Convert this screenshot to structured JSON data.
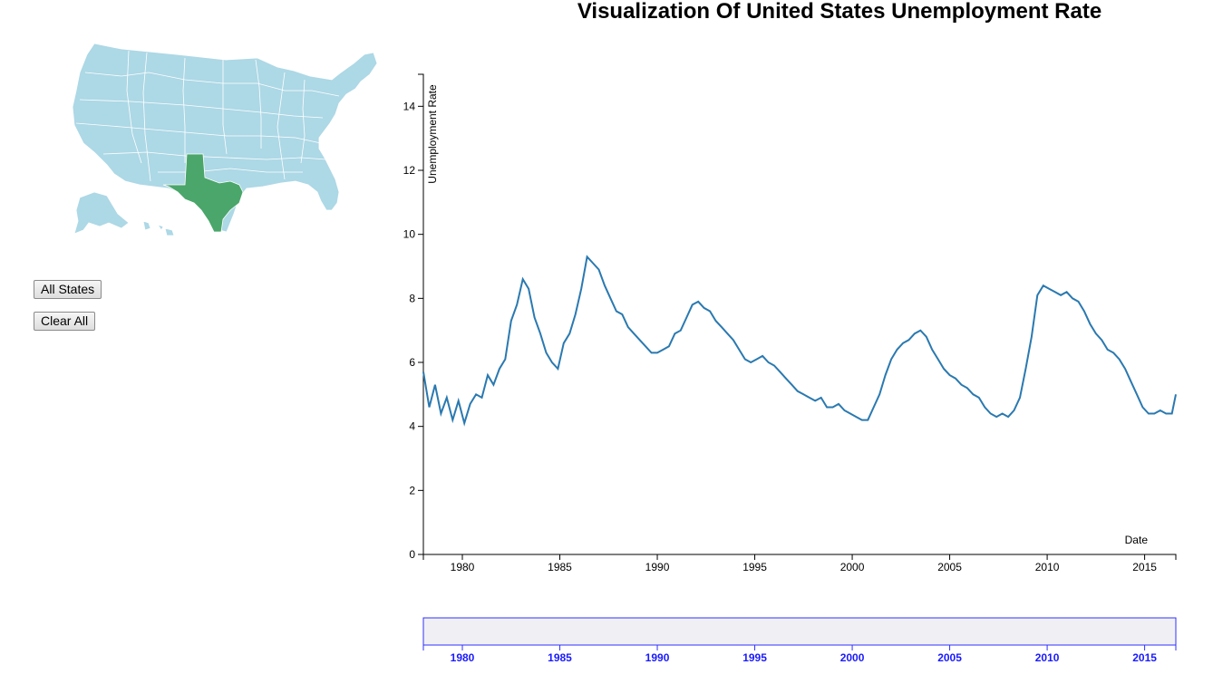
{
  "title": "Visualization Of United States Unemployment Rate",
  "buttons": {
    "all_states": "All States",
    "clear_all": "Clear All"
  },
  "map": {
    "selected_state": "Texas",
    "base_color": "#add8e6",
    "selected_color": "#4aa66a",
    "border_color": "#ffffff"
  },
  "colors": {
    "line": "#2a79b0",
    "brush_fill": "#f0f0f4",
    "brush_stroke": "#3030ff"
  },
  "chart_data": {
    "type": "line",
    "xlabel": "Date",
    "ylabel": "Unemployment Rate",
    "xlim": [
      1978,
      2016.6
    ],
    "ylim": [
      0,
      15
    ],
    "x_ticks": [
      "1980",
      "1985",
      "1990",
      "1995",
      "2000",
      "2005",
      "2010",
      "2015"
    ],
    "y_ticks": [
      "0",
      "2",
      "4",
      "6",
      "8",
      "10",
      "12",
      "14"
    ],
    "series": [
      {
        "x": [
          1978.0,
          1978.3,
          1978.6,
          1978.9,
          1979.2,
          1979.5,
          1979.8,
          1980.1,
          1980.4,
          1980.7,
          1981.0,
          1981.3,
          1981.6,
          1981.9,
          1982.2,
          1982.5,
          1982.8,
          1983.1,
          1983.4,
          1983.7,
          1984.0,
          1984.3,
          1984.6,
          1984.9,
          1985.2,
          1985.5,
          1985.8,
          1986.1,
          1986.4,
          1986.7,
          1987.0,
          1987.3,
          1987.6,
          1987.9,
          1988.2,
          1988.5,
          1988.8,
          1989.1,
          1989.4,
          1989.7,
          1990.0,
          1990.3,
          1990.6,
          1990.9,
          1991.2,
          1991.5,
          1991.8,
          1992.1,
          1992.4,
          1992.7,
          1993.0,
          1993.3,
          1993.6,
          1993.9,
          1994.2,
          1994.5,
          1994.8,
          1995.1,
          1995.4,
          1995.7,
          1996.0,
          1996.3,
          1996.6,
          1996.9,
          1997.2,
          1997.5,
          1997.8,
          1998.1,
          1998.4,
          1998.7,
          1999.0,
          1999.3,
          1999.6,
          1999.9,
          2000.2,
          2000.5,
          2000.8,
          2001.1,
          2001.4,
          2001.7,
          2002.0,
          2002.3,
          2002.6,
          2002.9,
          2003.2,
          2003.5,
          2003.8,
          2004.1,
          2004.4,
          2004.7,
          2005.0,
          2005.3,
          2005.6,
          2005.9,
          2006.2,
          2006.5,
          2006.8,
          2007.1,
          2007.4,
          2007.7,
          2008.0,
          2008.3,
          2008.6,
          2008.9,
          2009.2,
          2009.5,
          2009.8,
          2010.1,
          2010.4,
          2010.7,
          2011.0,
          2011.3,
          2011.6,
          2011.9,
          2012.2,
          2012.5,
          2012.8,
          2013.1,
          2013.4,
          2013.7,
          2014.0,
          2014.3,
          2014.6,
          2014.9,
          2015.2,
          2015.5,
          2015.8,
          2016.1,
          2016.4,
          2016.6
        ],
        "values": [
          5.7,
          4.6,
          5.3,
          4.4,
          4.9,
          4.2,
          4.8,
          4.1,
          4.7,
          5.0,
          4.9,
          5.6,
          5.3,
          5.8,
          6.1,
          7.3,
          7.8,
          8.6,
          8.3,
          7.4,
          6.9,
          6.3,
          6.0,
          5.8,
          6.6,
          6.9,
          7.5,
          8.3,
          9.3,
          9.1,
          8.9,
          8.4,
          8.0,
          7.6,
          7.5,
          7.1,
          6.9,
          6.7,
          6.5,
          6.3,
          6.3,
          6.4,
          6.5,
          6.9,
          7.0,
          7.4,
          7.8,
          7.9,
          7.7,
          7.6,
          7.3,
          7.1,
          6.9,
          6.7,
          6.4,
          6.1,
          6.0,
          6.1,
          6.2,
          6.0,
          5.9,
          5.7,
          5.5,
          5.3,
          5.1,
          5.0,
          4.9,
          4.8,
          4.9,
          4.6,
          4.6,
          4.7,
          4.5,
          4.4,
          4.3,
          4.2,
          4.2,
          4.6,
          5.0,
          5.6,
          6.1,
          6.4,
          6.6,
          6.7,
          6.9,
          7.0,
          6.8,
          6.4,
          6.1,
          5.8,
          5.6,
          5.5,
          5.3,
          5.2,
          5.0,
          4.9,
          4.6,
          4.4,
          4.3,
          4.4,
          4.3,
          4.5,
          4.9,
          5.8,
          6.8,
          8.1,
          8.4,
          8.3,
          8.2,
          8.1,
          8.2,
          8.0,
          7.9,
          7.6,
          7.2,
          6.9,
          6.7,
          6.4,
          6.3,
          6.1,
          5.8,
          5.4,
          5.0,
          4.6,
          4.4,
          4.4,
          4.5,
          4.4,
          4.4,
          5.0
        ]
      }
    ]
  }
}
